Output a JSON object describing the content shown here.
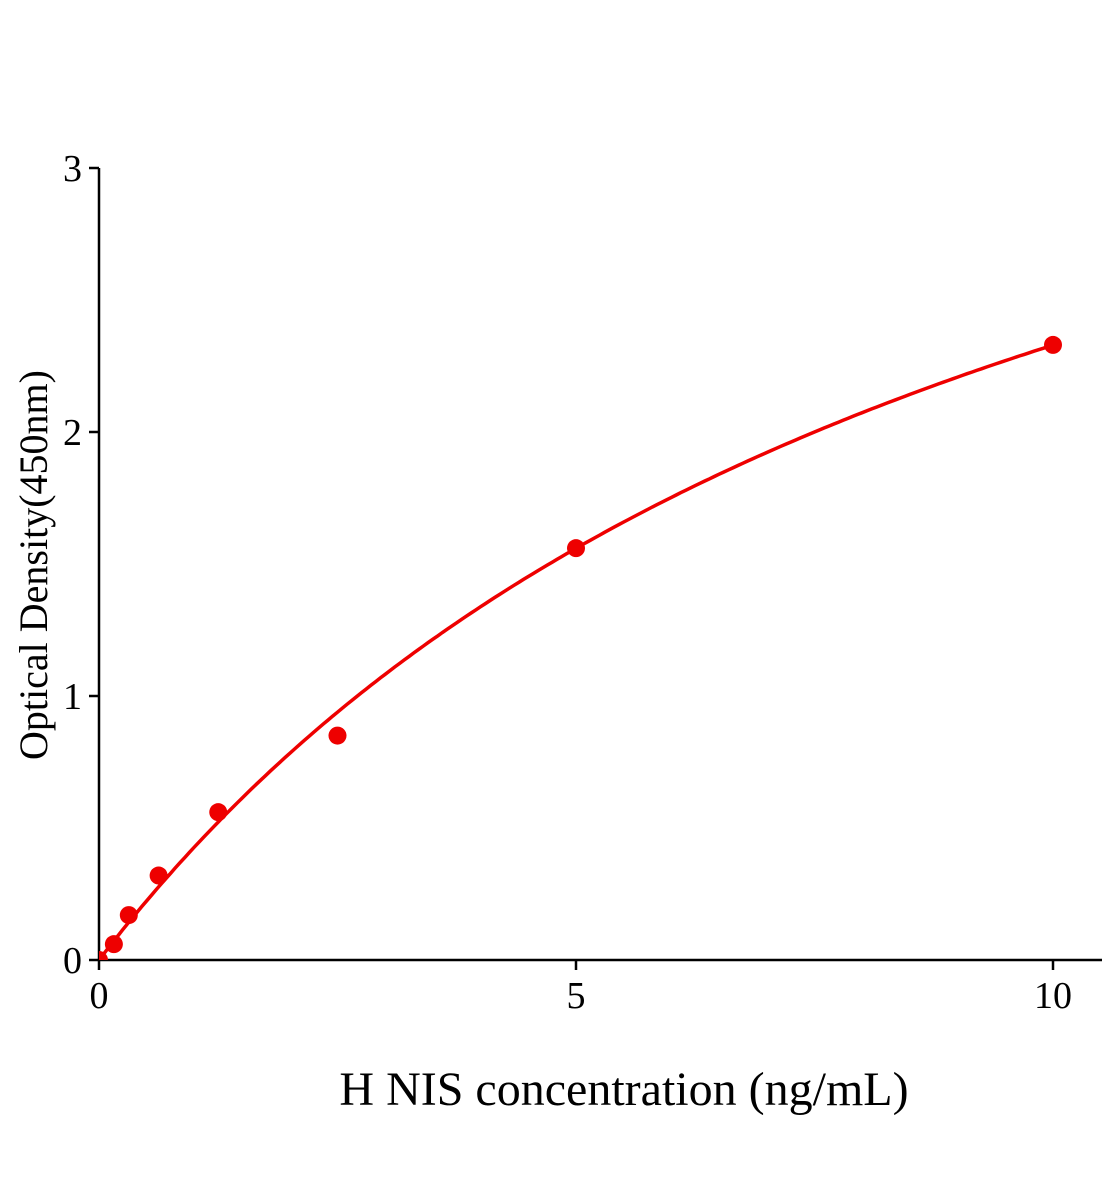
{
  "chart_data": {
    "type": "scatter",
    "title": "",
    "xlabel": "H NIS concentration (ng/mL)",
    "ylabel": "Optical Density(450nm)",
    "xlim": [
      0,
      10.5
    ],
    "ylim": [
      0,
      3
    ],
    "xticks": [
      0,
      5,
      10
    ],
    "yticks": [
      0,
      1,
      2,
      3
    ],
    "grid": false,
    "legend": "none",
    "color": "#ee0000",
    "points": [
      {
        "x": 0,
        "y": 0.0
      },
      {
        "x": 0.156,
        "y": 0.06
      },
      {
        "x": 0.3125,
        "y": 0.17
      },
      {
        "x": 0.625,
        "y": 0.32
      },
      {
        "x": 1.25,
        "y": 0.56
      },
      {
        "x": 2.5,
        "y": 0.85
      },
      {
        "x": 5,
        "y": 1.56
      },
      {
        "x": 10,
        "y": 2.33
      }
    ],
    "fit_curve": true
  }
}
